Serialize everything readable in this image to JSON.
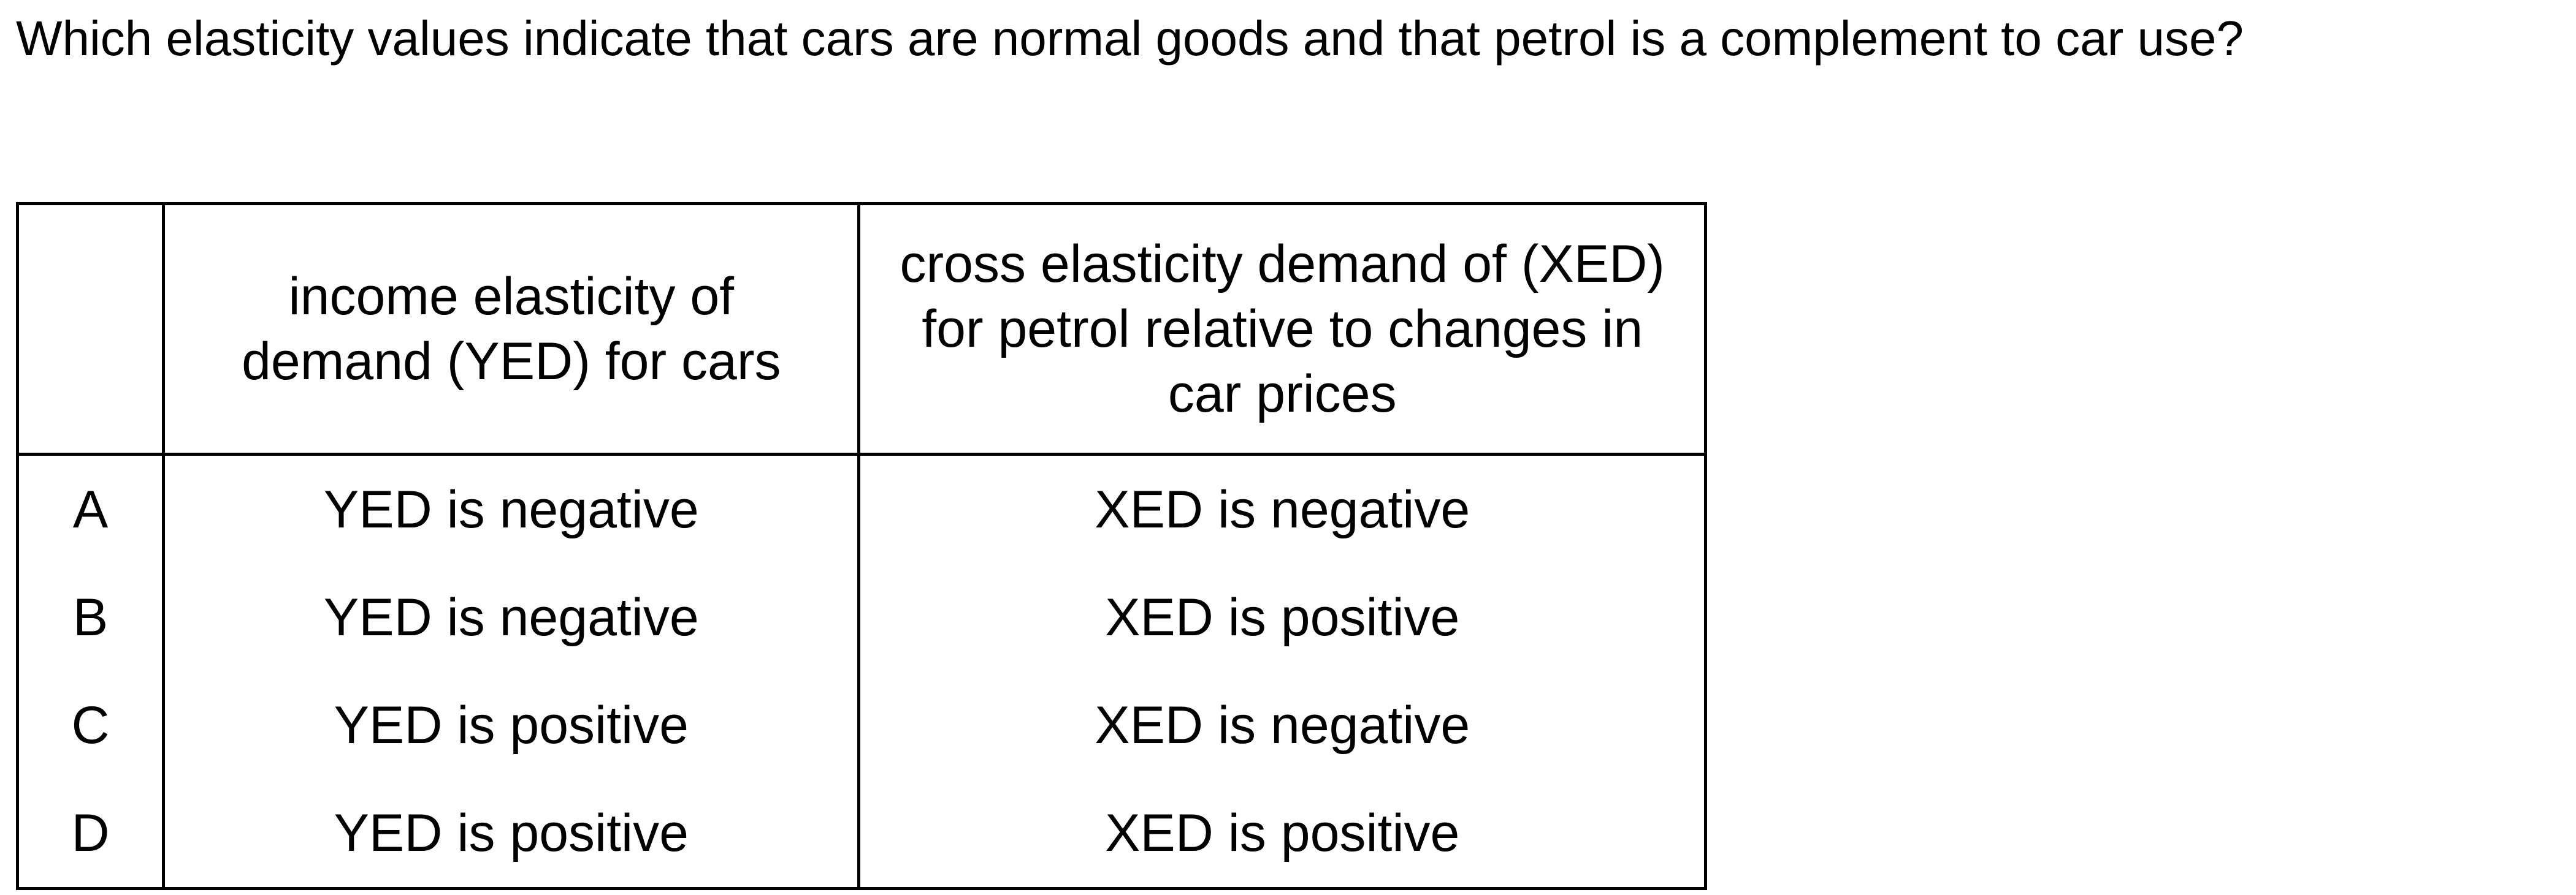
{
  "question": "Which elasticity values indicate that cars are normal goods and that petrol is a complement to car use?",
  "table": {
    "headers": [
      "",
      "income elasticity of demand (YED) for cars",
      "cross elasticity demand of (XED) for petrol relative to changes in car prices"
    ],
    "rows": [
      {
        "letter": "A",
        "yed": "YED is negative",
        "xed": "XED is negative"
      },
      {
        "letter": "B",
        "yed": "YED is negative",
        "xed": "XED is positive"
      },
      {
        "letter": "C",
        "yed": "YED is positive",
        "xed": "XED is negative"
      },
      {
        "letter": "D",
        "yed": "YED is positive",
        "xed": "XED is positive"
      }
    ]
  }
}
